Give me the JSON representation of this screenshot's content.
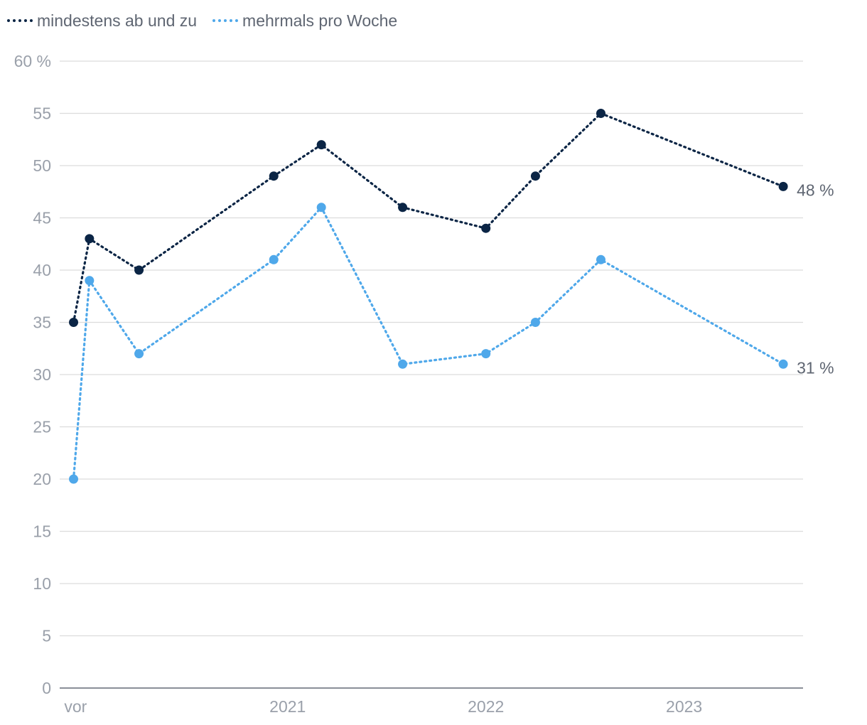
{
  "colors": {
    "series1": "#0b2545",
    "series2": "#4fa8ea",
    "grid": "#dcdcdc",
    "axis": "#8a8f98",
    "tick": "#9aa0aa",
    "label": "#5f6672"
  },
  "chart_data": {
    "type": "line",
    "ylim": [
      0,
      60
    ],
    "yticks": [
      {
        "value": 0,
        "label": "0"
      },
      {
        "value": 5,
        "label": "5"
      },
      {
        "value": 10,
        "label": "10"
      },
      {
        "value": 15,
        "label": "15"
      },
      {
        "value": 20,
        "label": "20"
      },
      {
        "value": 25,
        "label": "25"
      },
      {
        "value": 30,
        "label": "30"
      },
      {
        "value": 35,
        "label": "35"
      },
      {
        "value": 40,
        "label": "40"
      },
      {
        "value": 45,
        "label": "45"
      },
      {
        "value": 50,
        "label": "50"
      },
      {
        "value": 55,
        "label": "55"
      },
      {
        "value": 60,
        "label": "60 %"
      }
    ],
    "x_labels": [
      "vor",
      "2021",
      "2022",
      "2023"
    ],
    "x_label_positions": [
      2019.93,
      2021.0,
      2022.0,
      2023.0
    ],
    "xlim": [
      2019.85,
      2023.6
    ],
    "x": [
      2019.92,
      2020.0,
      2020.25,
      2020.93,
      2021.17,
      2021.58,
      2022.0,
      2022.25,
      2022.58,
      2023.5
    ],
    "series": [
      {
        "name": "mindestens ab und zu",
        "values": [
          35,
          43,
          40,
          49,
          52,
          46,
          44,
          49,
          55,
          48
        ],
        "end_label": "48 %"
      },
      {
        "name": "mehrmals pro Woche",
        "values": [
          20,
          39,
          32,
          41,
          46,
          31,
          32,
          35,
          41,
          31
        ],
        "end_label": "31 %"
      }
    ],
    "grid": true,
    "legend": "top-left"
  }
}
